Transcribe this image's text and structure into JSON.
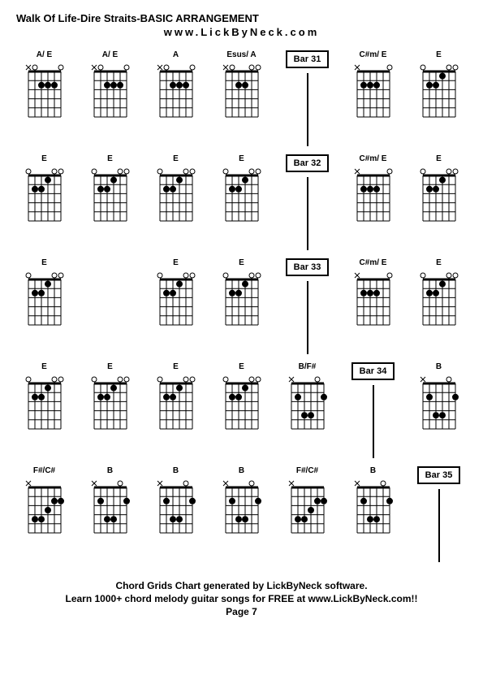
{
  "title": "Walk Of Life-Dire Straits-BASIC ARRANGEMENT",
  "subtitle": "www.LickByNeck.com",
  "chord_style": {
    "width": 48,
    "height": 72,
    "frets": 5,
    "strings": 6,
    "line_color": "#000000",
    "dot_radius": 4,
    "dot_color": "#000000",
    "open_radius": 3
  },
  "rows": [
    {
      "cells": [
        {
          "type": "chord",
          "label": "A/ E",
          "nut": [
            "x",
            "o",
            "",
            "",
            "",
            "o"
          ],
          "dots": [
            [
              2,
              2
            ],
            [
              3,
              2
            ],
            [
              4,
              2
            ]
          ]
        },
        {
          "type": "chord",
          "label": "A/ E",
          "nut": [
            "x",
            "o",
            "",
            "",
            "",
            "o"
          ],
          "dots": [
            [
              2,
              2
            ],
            [
              3,
              2
            ],
            [
              4,
              2
            ]
          ]
        },
        {
          "type": "chord",
          "label": "A",
          "nut": [
            "x",
            "o",
            "",
            "",
            "",
            "o"
          ],
          "dots": [
            [
              2,
              2
            ],
            [
              3,
              2
            ],
            [
              4,
              2
            ]
          ]
        },
        {
          "type": "chord",
          "label": "Esus/ A",
          "nut": [
            "x",
            "o",
            "",
            "",
            "o",
            "o"
          ],
          "dots": [
            [
              2,
              2
            ],
            [
              3,
              2
            ]
          ]
        },
        {
          "type": "bar",
          "label": "Bar 31"
        },
        {
          "type": "chord",
          "label": "C#m/ E",
          "nut": [
            "x",
            "",
            "",
            "",
            "",
            "o"
          ],
          "dots": [
            [
              1,
              2
            ],
            [
              2,
              2
            ],
            [
              3,
              2
            ]
          ]
        },
        {
          "type": "chord",
          "label": "E",
          "nut": [
            "o",
            "",
            "",
            "",
            "o",
            "o"
          ],
          "dots": [
            [
              1,
              2
            ],
            [
              2,
              2
            ],
            [
              3,
              1
            ]
          ]
        }
      ]
    },
    {
      "cells": [
        {
          "type": "chord",
          "label": "E",
          "nut": [
            "o",
            "",
            "",
            "",
            "o",
            "o"
          ],
          "dots": [
            [
              1,
              2
            ],
            [
              2,
              2
            ],
            [
              3,
              1
            ]
          ]
        },
        {
          "type": "chord",
          "label": "E",
          "nut": [
            "o",
            "",
            "",
            "",
            "o",
            "o"
          ],
          "dots": [
            [
              1,
              2
            ],
            [
              2,
              2
            ],
            [
              3,
              1
            ]
          ]
        },
        {
          "type": "chord",
          "label": "E",
          "nut": [
            "o",
            "",
            "",
            "",
            "o",
            "o"
          ],
          "dots": [
            [
              1,
              2
            ],
            [
              2,
              2
            ],
            [
              3,
              1
            ]
          ]
        },
        {
          "type": "chord",
          "label": "E",
          "nut": [
            "o",
            "",
            "",
            "",
            "o",
            "o"
          ],
          "dots": [
            [
              1,
              2
            ],
            [
              2,
              2
            ],
            [
              3,
              1
            ]
          ]
        },
        {
          "type": "bar",
          "label": "Bar 32"
        },
        {
          "type": "chord",
          "label": "C#m/ E",
          "nut": [
            "x",
            "",
            "",
            "",
            "",
            "o"
          ],
          "dots": [
            [
              1,
              2
            ],
            [
              2,
              2
            ],
            [
              3,
              2
            ]
          ]
        },
        {
          "type": "chord",
          "label": "E",
          "nut": [
            "o",
            "",
            "",
            "",
            "o",
            "o"
          ],
          "dots": [
            [
              1,
              2
            ],
            [
              2,
              2
            ],
            [
              3,
              1
            ]
          ]
        }
      ]
    },
    {
      "cells": [
        {
          "type": "chord",
          "label": "E",
          "nut": [
            "o",
            "",
            "",
            "",
            "o",
            "o"
          ],
          "dots": [
            [
              1,
              2
            ],
            [
              2,
              2
            ],
            [
              3,
              1
            ]
          ]
        },
        {
          "type": "empty"
        },
        {
          "type": "chord",
          "label": "E",
          "nut": [
            "o",
            "",
            "",
            "",
            "o",
            "o"
          ],
          "dots": [
            [
              1,
              2
            ],
            [
              2,
              2
            ],
            [
              3,
              1
            ]
          ]
        },
        {
          "type": "chord",
          "label": "E",
          "nut": [
            "o",
            "",
            "",
            "",
            "o",
            "o"
          ],
          "dots": [
            [
              1,
              2
            ],
            [
              2,
              2
            ],
            [
              3,
              1
            ]
          ]
        },
        {
          "type": "bar",
          "label": "Bar 33"
        },
        {
          "type": "chord",
          "label": "C#m/ E",
          "nut": [
            "x",
            "",
            "",
            "",
            "",
            "o"
          ],
          "dots": [
            [
              1,
              2
            ],
            [
              2,
              2
            ],
            [
              3,
              2
            ]
          ]
        },
        {
          "type": "chord",
          "label": "E",
          "nut": [
            "o",
            "",
            "",
            "",
            "o",
            "o"
          ],
          "dots": [
            [
              1,
              2
            ],
            [
              2,
              2
            ],
            [
              3,
              1
            ]
          ]
        }
      ]
    },
    {
      "cells": [
        {
          "type": "chord",
          "label": "E",
          "nut": [
            "o",
            "",
            "",
            "",
            "o",
            "o"
          ],
          "dots": [
            [
              1,
              2
            ],
            [
              2,
              2
            ],
            [
              3,
              1
            ]
          ]
        },
        {
          "type": "chord",
          "label": "E",
          "nut": [
            "o",
            "",
            "",
            "",
            "o",
            "o"
          ],
          "dots": [
            [
              1,
              2
            ],
            [
              2,
              2
            ],
            [
              3,
              1
            ]
          ]
        },
        {
          "type": "chord",
          "label": "E",
          "nut": [
            "o",
            "",
            "",
            "",
            "o",
            "o"
          ],
          "dots": [
            [
              1,
              2
            ],
            [
              2,
              2
            ],
            [
              3,
              1
            ]
          ]
        },
        {
          "type": "chord",
          "label": "E",
          "nut": [
            "o",
            "",
            "",
            "",
            "o",
            "o"
          ],
          "dots": [
            [
              1,
              2
            ],
            [
              2,
              2
            ],
            [
              3,
              1
            ]
          ]
        },
        {
          "type": "chord",
          "label": "B/F#",
          "nut": [
            "x",
            "",
            "",
            "",
            "o",
            ""
          ],
          "dots": [
            [
              1,
              2
            ],
            [
              2,
              4
            ],
            [
              3,
              4
            ],
            [
              5,
              2
            ]
          ]
        },
        {
          "type": "bar",
          "label": "Bar 34"
        },
        {
          "type": "chord",
          "label": "B",
          "nut": [
            "x",
            "",
            "",
            "",
            "o",
            ""
          ],
          "dots": [
            [
              1,
              2
            ],
            [
              2,
              4
            ],
            [
              3,
              4
            ],
            [
              5,
              2
            ]
          ]
        }
      ]
    },
    {
      "cells": [
        {
          "type": "chord",
          "label": "F#/C#",
          "nut": [
            "x",
            "",
            "",
            "",
            "",
            ""
          ],
          "dots": [
            [
              1,
              4
            ],
            [
              2,
              4
            ],
            [
              3,
              3
            ],
            [
              4,
              2
            ],
            [
              5,
              2
            ]
          ]
        },
        {
          "type": "chord",
          "label": "B",
          "nut": [
            "x",
            "",
            "",
            "",
            "o",
            ""
          ],
          "dots": [
            [
              1,
              2
            ],
            [
              2,
              4
            ],
            [
              3,
              4
            ],
            [
              5,
              2
            ]
          ]
        },
        {
          "type": "chord",
          "label": "B",
          "nut": [
            "x",
            "",
            "",
            "",
            "o",
            ""
          ],
          "dots": [
            [
              1,
              2
            ],
            [
              2,
              4
            ],
            [
              3,
              4
            ],
            [
              5,
              2
            ]
          ]
        },
        {
          "type": "chord",
          "label": "B",
          "nut": [
            "x",
            "",
            "",
            "",
            "o",
            ""
          ],
          "dots": [
            [
              1,
              2
            ],
            [
              2,
              4
            ],
            [
              3,
              4
            ],
            [
              5,
              2
            ]
          ]
        },
        {
          "type": "chord",
          "label": "F#/C#",
          "nut": [
            "x",
            "",
            "",
            "",
            "",
            ""
          ],
          "dots": [
            [
              1,
              4
            ],
            [
              2,
              4
            ],
            [
              3,
              3
            ],
            [
              4,
              2
            ],
            [
              5,
              2
            ]
          ]
        },
        {
          "type": "chord",
          "label": "B",
          "nut": [
            "x",
            "",
            "",
            "",
            "o",
            ""
          ],
          "dots": [
            [
              1,
              2
            ],
            [
              2,
              4
            ],
            [
              3,
              4
            ],
            [
              5,
              2
            ]
          ]
        },
        {
          "type": "bar",
          "label": "Bar 35"
        }
      ]
    }
  ],
  "footer": {
    "line1": "Chord Grids Chart generated by LickByNeck software.",
    "line2": "Learn 1000+ chord melody guitar songs for FREE at www.LickByNeck.com!!",
    "line3": "Page 7"
  }
}
